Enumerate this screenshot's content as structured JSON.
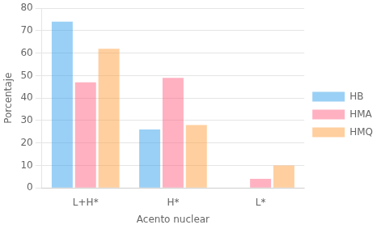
{
  "chart_data": {
    "type": "bar",
    "xlabel": "Acento nuclear",
    "ylabel": "Porcentaje",
    "categories": [
      "L+H*",
      "H*",
      "L*"
    ],
    "series": [
      {
        "name": "HB",
        "values": [
          74,
          26,
          0
        ]
      },
      {
        "name": "HMA",
        "values": [
          47,
          49,
          4
        ]
      },
      {
        "name": "HMQ",
        "values": [
          62,
          28,
          10
        ]
      }
    ],
    "ylim": [
      0,
      80
    ],
    "yticks": [
      0,
      10,
      20,
      30,
      40,
      50,
      60,
      70,
      80
    ],
    "grid": true,
    "legend": "right"
  }
}
